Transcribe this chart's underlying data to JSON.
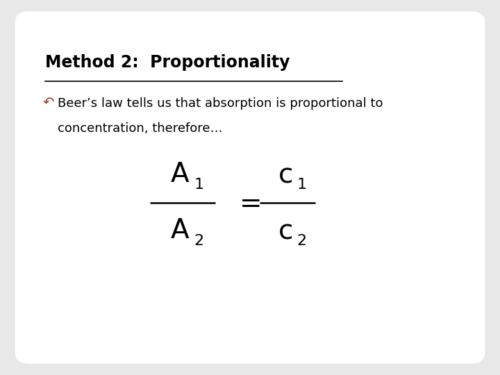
{
  "title": "Method 2:  Proportionality",
  "bullet_line1": "Beer’s law tells us that absorption is proportional to",
  "bullet_line2": "concentration, therefore…",
  "background_color": "#e8e8e8",
  "slide_bg": "#ffffff",
  "title_color": "#000000",
  "text_color": "#000000",
  "bullet_icon_color": "#8B3A1A",
  "title_fontsize": 17,
  "body_fontsize": 13,
  "figwidth": 7.2,
  "figheight": 5.4
}
